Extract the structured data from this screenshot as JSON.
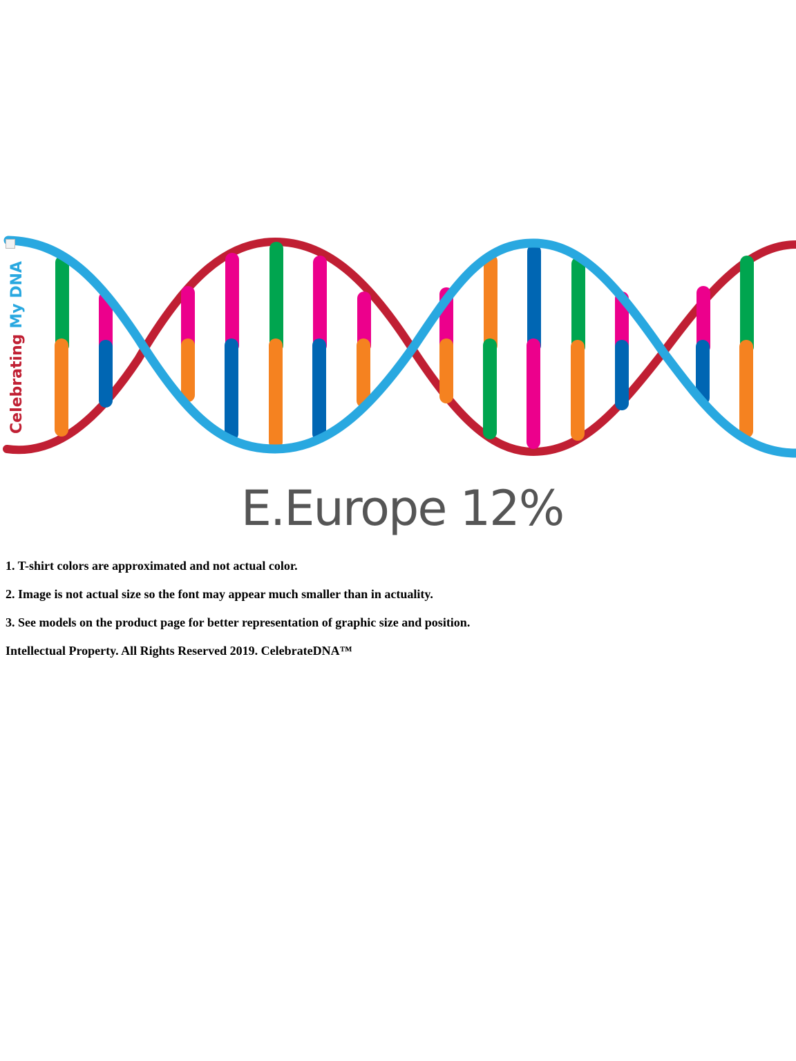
{
  "graphic": {
    "brand_word_1": "Celebrating",
    "brand_word_2": "My DNA",
    "headline": "E.Europe 12%",
    "colors": {
      "strand_red": "#c01f33",
      "strand_blue": "#29a8e0",
      "rung_green": "#00a54f",
      "rung_orange": "#f58220",
      "rung_pink": "#ec008c",
      "rung_blue": "#0066b3",
      "headline_gray": "#555555"
    }
  },
  "notes": [
    "1. T-shirt colors are approximated and not actual color.",
    "2. Image is not actual size so the font may appear much smaller than in actuality.",
    "3. See models on the product page for better representation of graphic size and position."
  ],
  "footer": "Intellectual Property. All Rights Reserved 2019. CelebrateDNA™"
}
